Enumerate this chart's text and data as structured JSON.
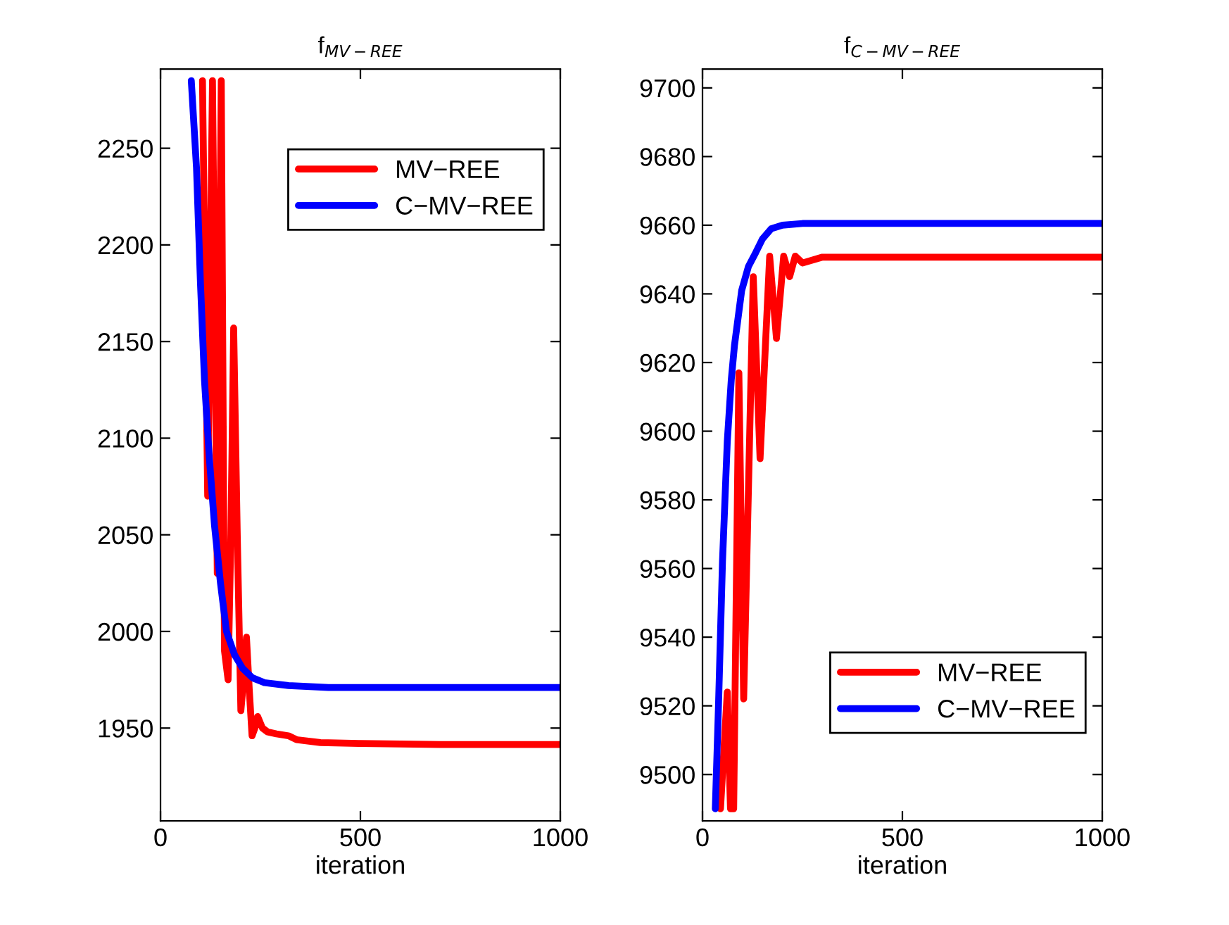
{
  "chart_data": [
    {
      "type": "line",
      "title": "f$_{MV−REE}$",
      "xlabel": "iteration",
      "xlim": [
        0,
        1000
      ],
      "xticks": [
        0,
        500,
        1000
      ],
      "ylim": [
        1902,
        2291
      ],
      "yticks": [
        1950,
        2000,
        2050,
        2100,
        2150,
        2200,
        2250
      ],
      "grid": false,
      "legend": "top right",
      "series": [
        {
          "name": "MV−REE",
          "color": "#ff0000",
          "x": [
            105,
            118,
            130,
            142,
            152,
            160,
            169,
            176,
            183,
            192,
            201,
            208,
            215,
            222,
            229,
            236,
            243,
            255,
            268,
            290,
            320,
            340,
            400,
            500,
            700,
            1000
          ],
          "values": [
            2285,
            2070,
            2285,
            2030,
            2285,
            1990,
            1975,
            2050,
            2157,
            2050,
            1959,
            1975,
            1997,
            1970,
            1946,
            1950,
            1956,
            1950,
            1948,
            1947,
            1946,
            1944,
            1942.5,
            1942,
            1941.5,
            1941.5
          ]
        },
        {
          "name": "C−MV−REE",
          "color": "#0000ff",
          "x": [
            77,
            90,
            100,
            110,
            122,
            135,
            150,
            165,
            185,
            205,
            230,
            260,
            320,
            420,
            1000
          ],
          "values": [
            2285,
            2240,
            2180,
            2130,
            2090,
            2055,
            2025,
            2000,
            1988,
            1981,
            1976,
            1973.5,
            1972,
            1971,
            1971
          ]
        }
      ]
    },
    {
      "type": "line",
      "title": "f$_{C−MV−REE}$",
      "xlabel": "iteration",
      "xlim": [
        0,
        1000
      ],
      "xticks": [
        0,
        500,
        1000
      ],
      "ylim": [
        9486.5,
        9705.5
      ],
      "yticks": [
        9500,
        9520,
        9540,
        9560,
        9580,
        9600,
        9620,
        9640,
        9660,
        9680,
        9700
      ],
      "grid": false,
      "legend": "bottom right",
      "series": [
        {
          "name": "MV−REE",
          "color": "#ff0000",
          "x": [
            45,
            62,
            70,
            78,
            91,
            103,
            127,
            144,
            168,
            185,
            203,
            218,
            232,
            250,
            300,
            1000
          ],
          "values": [
            9490,
            9524,
            9490,
            9490,
            9617,
            9522,
            9645,
            9592,
            9651,
            9627,
            9651,
            9645,
            9651,
            9649,
            9650.7,
            9650.7
          ]
        },
        {
          "name": "C−MV−REE",
          "color": "#0000ff",
          "x": [
            32,
            40,
            50,
            62,
            72,
            80,
            98,
            115,
            133,
            150,
            172,
            200,
            250,
            1000
          ],
          "values": [
            9490,
            9520,
            9562,
            9597,
            9615,
            9625,
            9641,
            9648,
            9652,
            9656,
            9659,
            9660,
            9660.5,
            9660.5
          ]
        }
      ]
    }
  ]
}
